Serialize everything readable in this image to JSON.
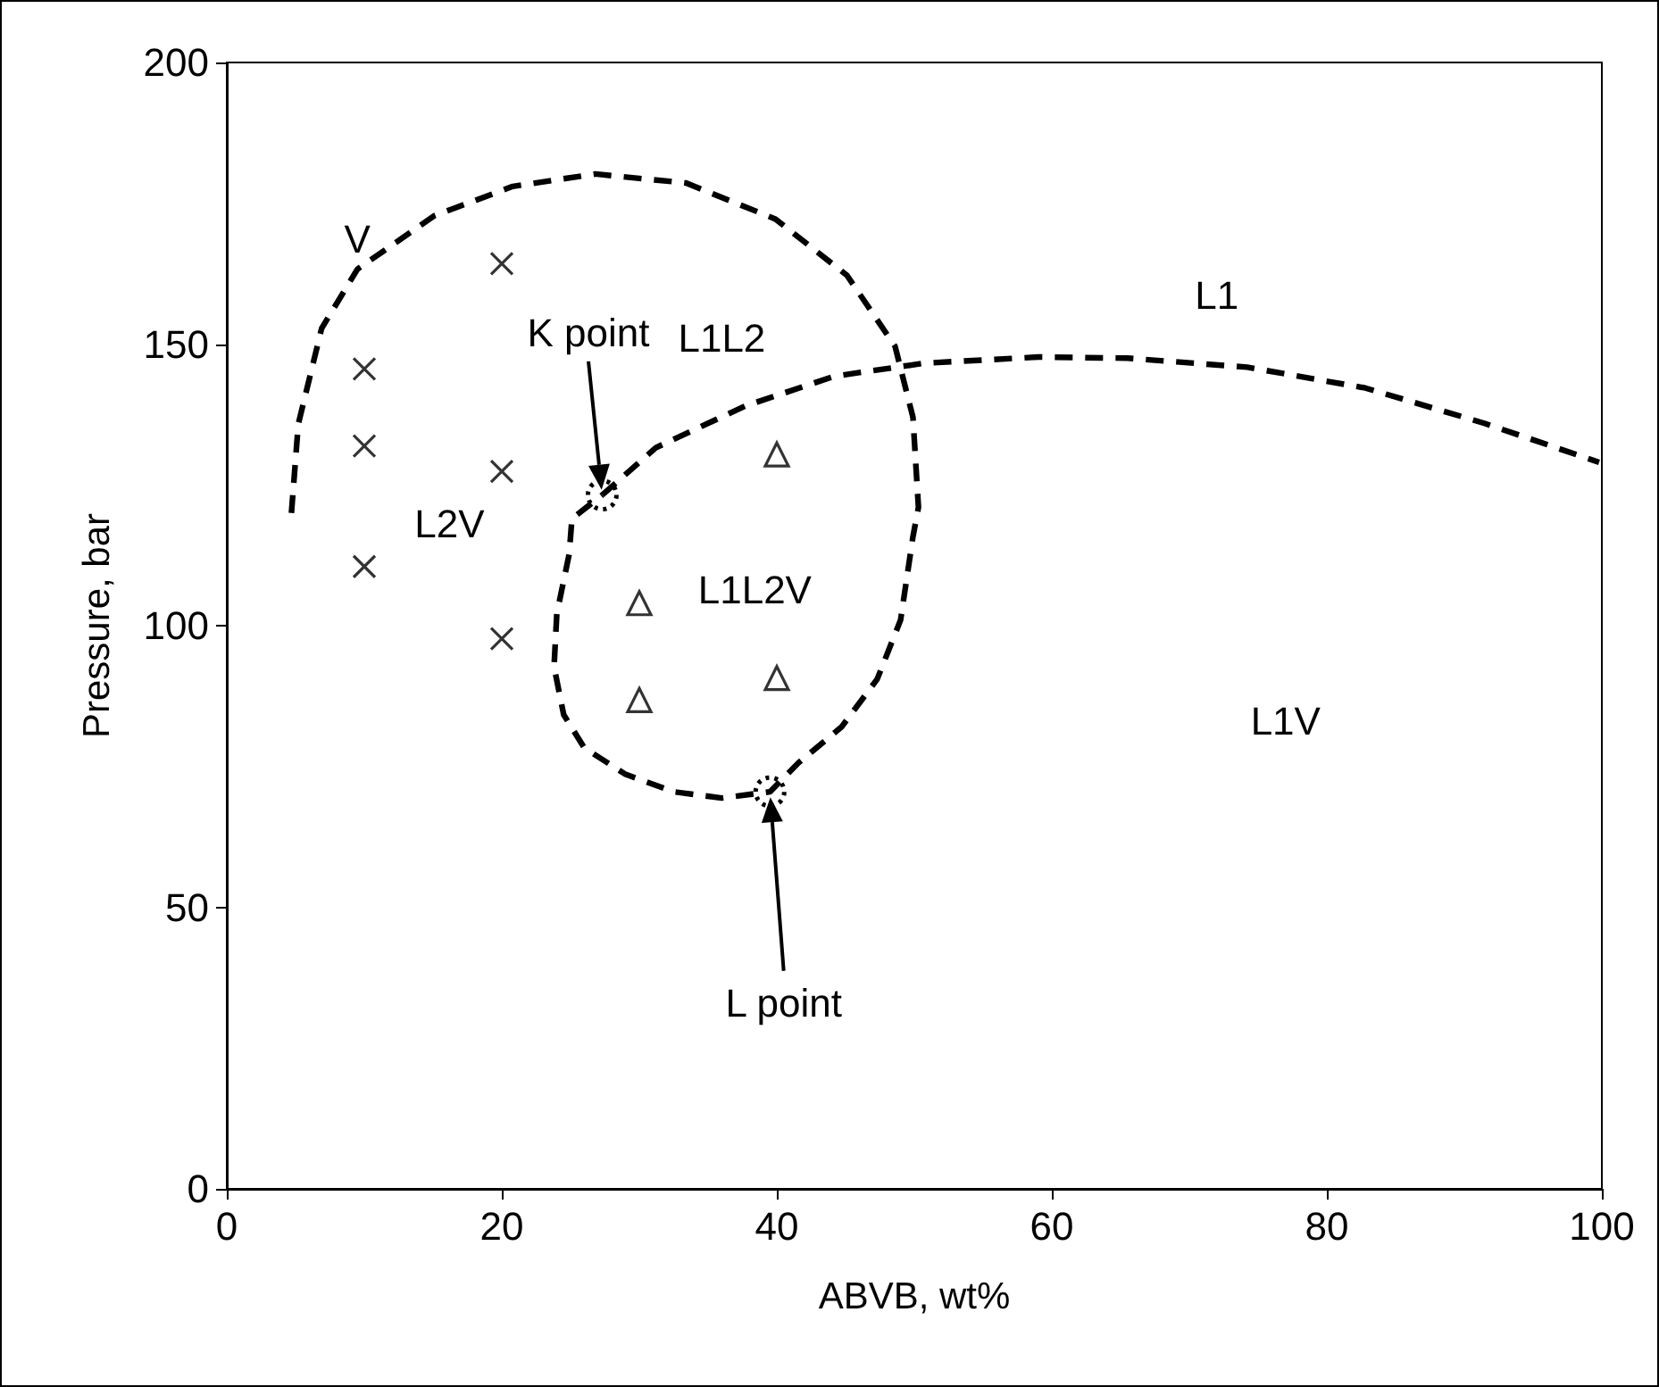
{
  "chart_data": {
    "type": "scatter",
    "xlabel": "ABVB, wt%",
    "ylabel": "Pressure, bar",
    "xlim": [
      0,
      100
    ],
    "xticks": [
      0,
      20,
      40,
      60,
      80,
      100
    ],
    "ylim": [
      0,
      200
    ],
    "yticks": [
      0,
      50,
      100,
      150,
      200
    ],
    "grid": false,
    "series": [
      {
        "marker": "cross",
        "color": "#000000",
        "x": [
          10,
          10,
          10,
          20,
          20,
          20
        ],
        "values": [
          145.6,
          131.9,
          110.5,
          164.3,
          127.4,
          97.7
        ]
      },
      {
        "marker": "triangle",
        "color": "#000000",
        "x": [
          40,
          30,
          40,
          30
        ],
        "values": [
          130.4,
          104,
          90.7,
          86.8
        ]
      },
      {
        "type": "line",
        "marker": "none",
        "line_style": "dashed",
        "color": "#000000",
        "x": [
          4.7,
          5.2,
          6.9,
          9.5,
          15.1,
          20.8,
          26.8,
          33.4,
          39.9,
          45.1,
          48.6,
          49.9,
          50.3,
          49.9,
          49,
          47.3,
          44.7,
          41.6,
          39.5,
          36,
          32.5,
          29,
          26,
          24.5,
          23.8,
          24,
          24.9,
          25.1,
          27.3
        ],
        "values": [
          120,
          135.8,
          152.8,
          163.3,
          172.8,
          178,
          180.2,
          178.6,
          172.2,
          162.2,
          149.6,
          137,
          121,
          115.8,
          101,
          90.5,
          82,
          75.7,
          70.5,
          69.4,
          70.5,
          73.6,
          78.3,
          84.2,
          92.7,
          102.1,
          112.7,
          119,
          123.2
        ]
      },
      {
        "type": "line",
        "marker": "none",
        "line_style": "dashed",
        "color": "#000000",
        "x": [
          27.3,
          31.2,
          37.7,
          44.2,
          50.7,
          59,
          65.5,
          74.2,
          82.8,
          91.5,
          99.8
        ],
        "values": [
          123.2,
          131.6,
          139,
          144.3,
          146.6,
          147.7,
          147.5,
          145.9,
          142.2,
          135.9,
          129
        ]
      }
    ],
    "annotations": [
      "V",
      "L1L2",
      "L2V",
      "L1L2V",
      "L1",
      "L1V",
      "K point",
      "L point"
    ]
  }
}
